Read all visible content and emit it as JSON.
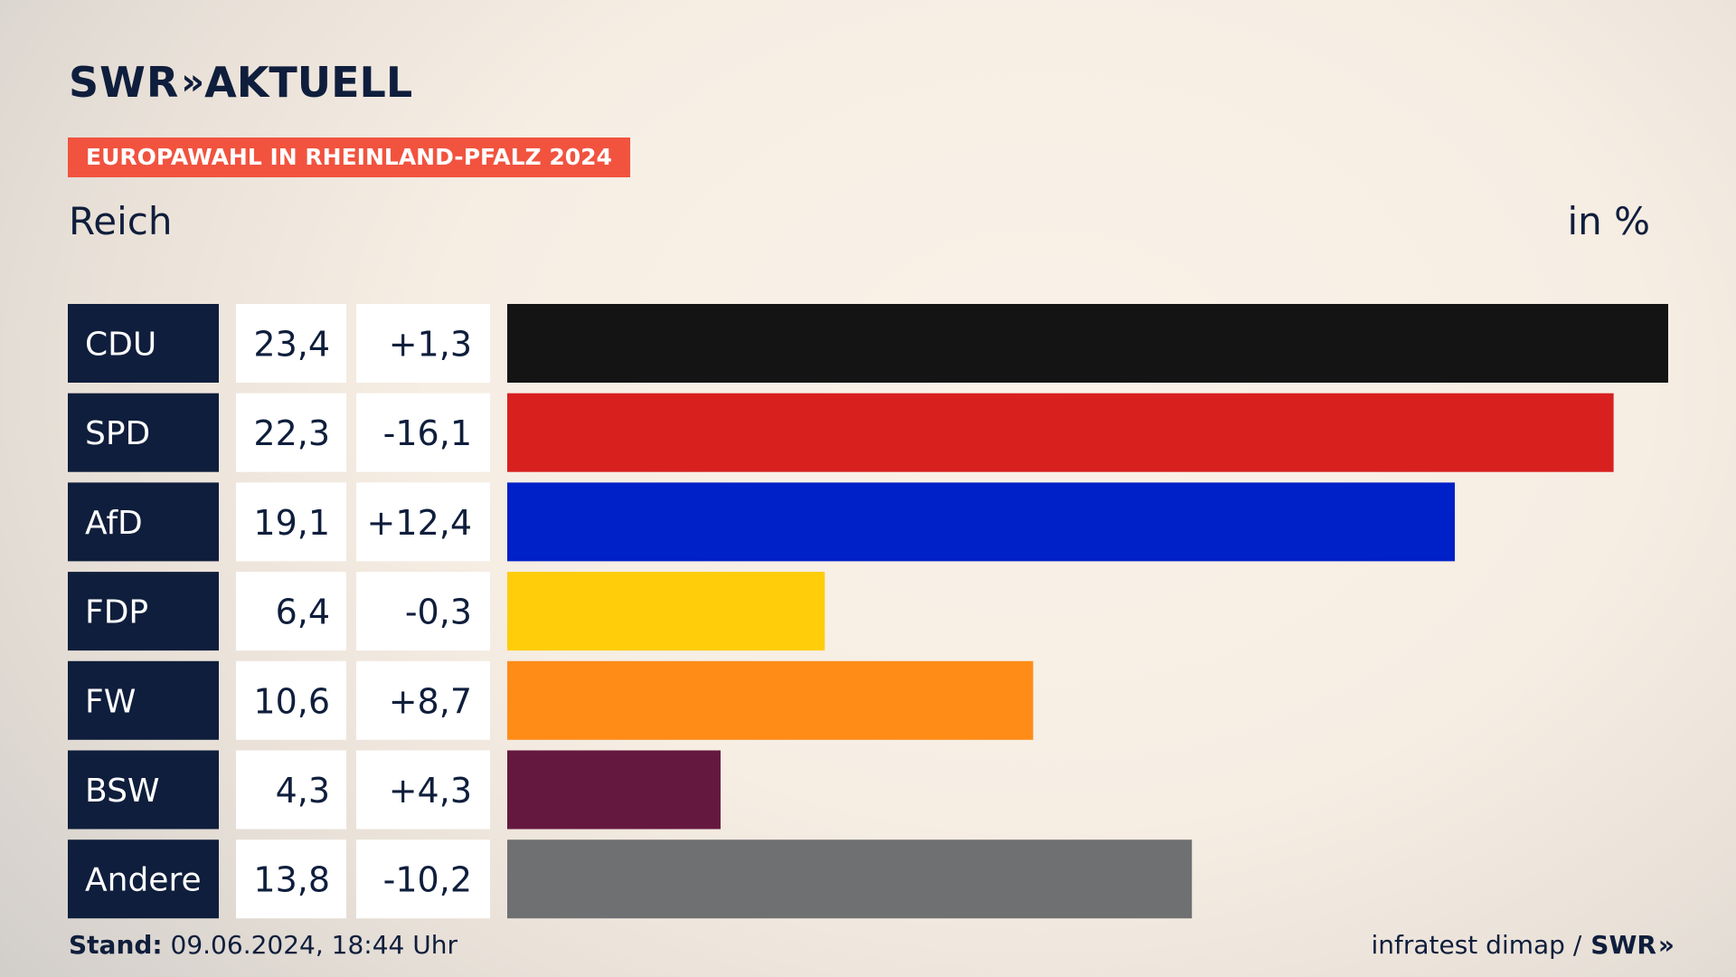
{
  "brand": {
    "logo_main": "SWR",
    "logo_chevron": "»",
    "logo_sub": "AKTUELL"
  },
  "kicker": "EUROPAWAHL IN RHEINLAND-PFALZ 2024",
  "region": "Reich",
  "unit": "in %",
  "footer": {
    "stand_label": "Stand:",
    "stand_value": "09.06.2024, 18:44 Uhr",
    "source": "infratest dimap /",
    "source_brand": "SWR",
    "source_chevron": "»"
  },
  "chart_data": {
    "type": "bar",
    "orientation": "horizontal",
    "categories": [
      "CDU",
      "SPD",
      "AfD",
      "FDP",
      "FW",
      "BSW",
      "Andere"
    ],
    "series": [
      {
        "values": [
          23.4,
          22.3,
          19.1,
          6.4,
          10.6,
          4.3,
          13.8
        ]
      }
    ],
    "value_labels": [
      "23,4",
      "22,3",
      "19,1",
      "6,4",
      "10,6",
      "4,3",
      "13,8"
    ],
    "change_labels": [
      "+1,3",
      "-16,1",
      "+12,4",
      "-0,3",
      "+8,7",
      "+4,3",
      "-10,2"
    ],
    "changes": [
      1.3,
      -16.1,
      12.4,
      -0.3,
      8.7,
      4.3,
      -10.2
    ],
    "colors": [
      "#141414",
      "#d8201f",
      "#0020c8",
      "#ffcd0a",
      "#ff8c17",
      "#65183f",
      "#6f7072"
    ],
    "xlim": [
      0,
      23.4
    ],
    "grid": false,
    "legend": "none"
  }
}
